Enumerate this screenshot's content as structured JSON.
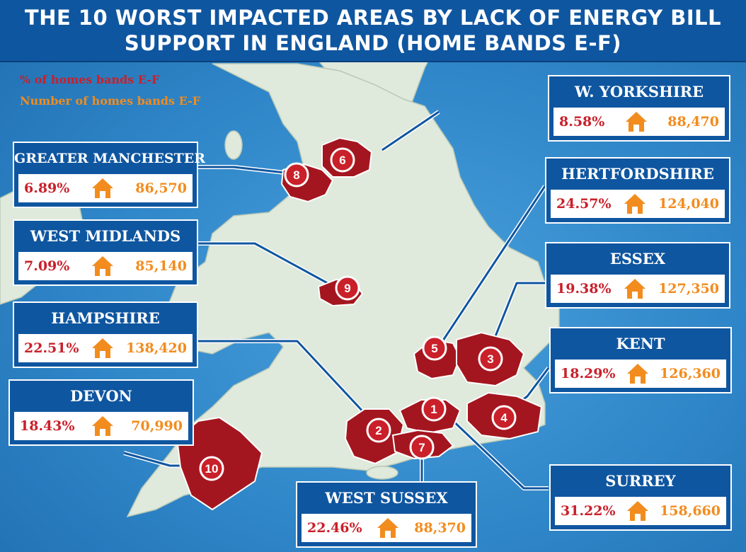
{
  "title": {
    "line1": "THE 10 WORST IMPACTED AREAS BY LACK OF ENERGY BILL",
    "line2": "SUPPORT IN ENGLAND (HOME BANDS E-F)"
  },
  "legend": {
    "percent_label": "% of homes bands E-F",
    "number_label": "Number of homes bands E-F"
  },
  "colors": {
    "title_bg": "#0f56a0",
    "sea": "#2f86c8",
    "land": "#dfe9dc",
    "region": "#a4161f",
    "percent": "#c9202a",
    "number": "#f28c1e"
  },
  "areas": [
    {
      "rank": "1",
      "name": "SURREY",
      "percent": "31.22%",
      "homes": "158,660",
      "icon": "house-icon"
    },
    {
      "rank": "2",
      "name": "HAMPSHIRE",
      "percent": "22.51%",
      "homes": "138,420",
      "icon": "house-icon"
    },
    {
      "rank": "3",
      "name": "ESSEX",
      "percent": "19.38%",
      "homes": "127,350",
      "icon": "house-icon"
    },
    {
      "rank": "4",
      "name": "KENT",
      "percent": "18.29%",
      "homes": "126,360",
      "icon": "house-icon"
    },
    {
      "rank": "5",
      "name": "HERTFORDSHIRE",
      "percent": "24.57%",
      "homes": "124,040",
      "icon": "house-icon"
    },
    {
      "rank": "6",
      "name": "W. YORKSHIRE",
      "percent": "8.58%",
      "homes": "88,470",
      "icon": "house-icon"
    },
    {
      "rank": "7",
      "name": "WEST SUSSEX",
      "percent": "22.46%",
      "homes": "88,370",
      "icon": "house-icon"
    },
    {
      "rank": "8",
      "name": "GREATER MANCHESTER",
      "percent": "6.89%",
      "homes": "86,570",
      "icon": "house-icon"
    },
    {
      "rank": "9",
      "name": "WEST MIDLANDS",
      "percent": "7.09%",
      "homes": "85,140",
      "icon": "house-icon"
    },
    {
      "rank": "10",
      "name": "DEVON",
      "percent": "18.43%",
      "homes": "70,990",
      "icon": "house-icon"
    }
  ]
}
